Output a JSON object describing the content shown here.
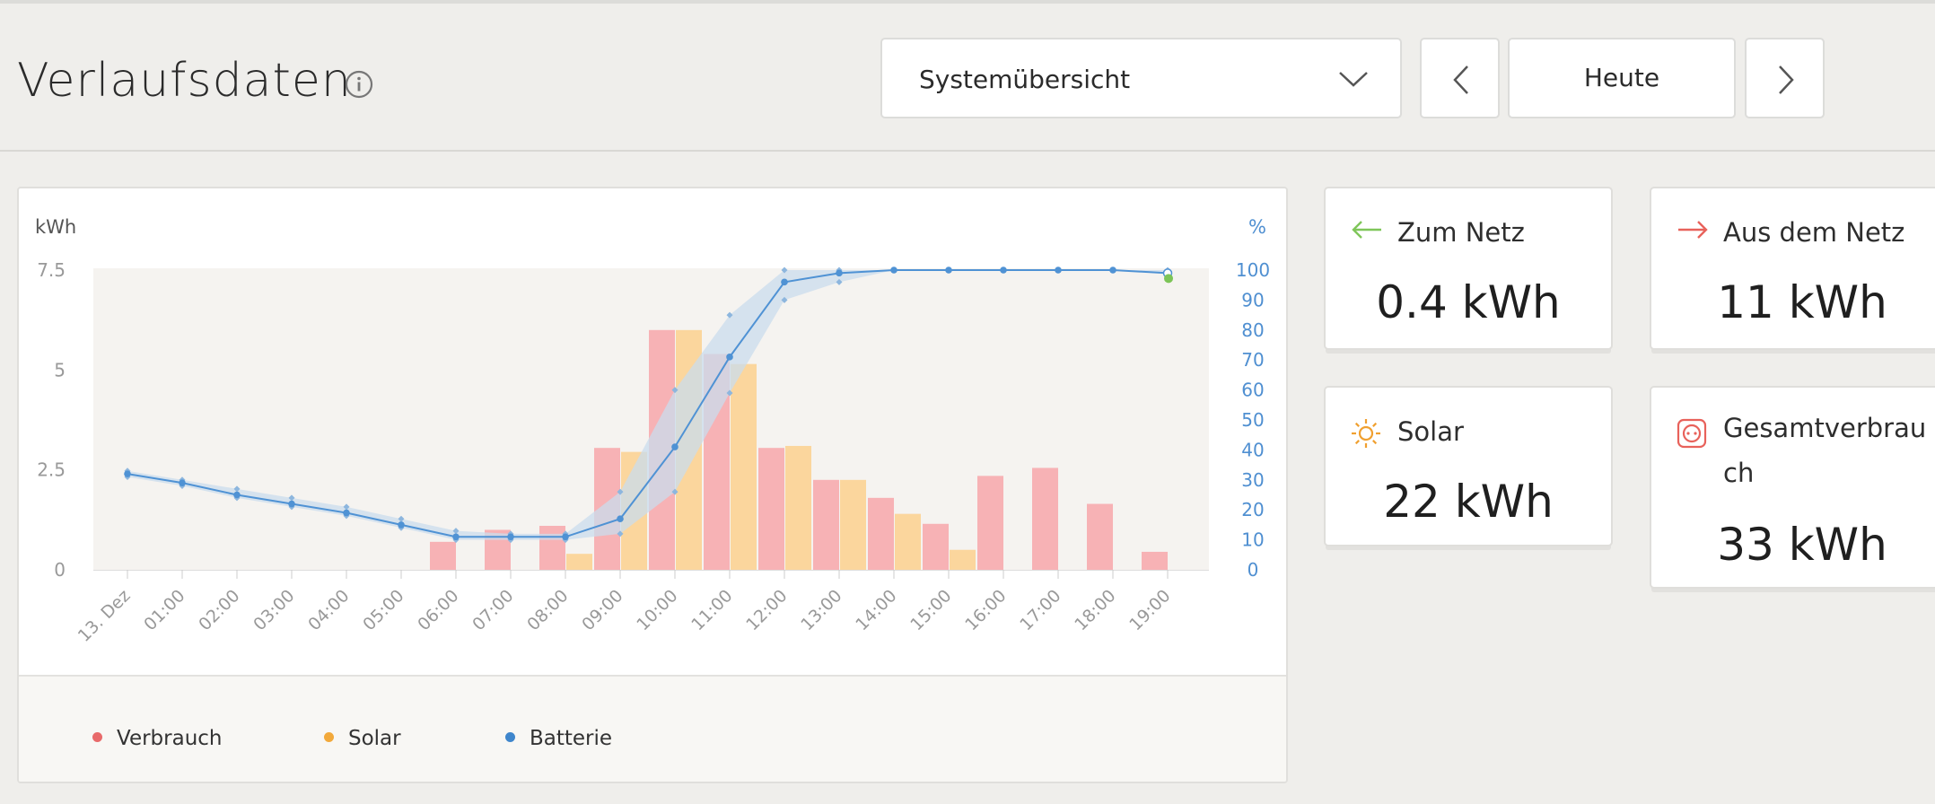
{
  "header": {
    "title": "Verlaufsdaten",
    "view_select": "Systemübersicht",
    "date_button": "Heute"
  },
  "stats": [
    {
      "label": "Zum Netz",
      "value": "0.4 kWh",
      "icon": "arrow-left-icon",
      "color": "#7fc65a"
    },
    {
      "label": "Aus dem Netz",
      "value": "11 kWh",
      "icon": "arrow-right-icon",
      "color": "#e8625b"
    },
    {
      "label": "Solar",
      "value": "22 kWh",
      "icon": "sun-icon",
      "color": "#f0a030"
    },
    {
      "label": "Gesamtverbrauch",
      "value": "33 kWh",
      "icon": "socket-icon",
      "color": "#e8625b"
    }
  ],
  "colors": {
    "verbrauch": "#f7b2b5",
    "solar": "#fbd69d",
    "batterie": "#4f92d4",
    "band": "#c9dcee",
    "plot_bg": "#f5f3f0"
  },
  "chart_data": {
    "type": "bar",
    "ylabel_left": "kWh",
    "ylabel_right": "%",
    "ylim_left": [
      0,
      7.5
    ],
    "ylim_right": [
      0,
      100
    ],
    "left_ticks": [
      "0",
      "2.5",
      "5",
      "7.5"
    ],
    "right_ticks": [
      "0",
      "10",
      "20",
      "30",
      "40",
      "50",
      "60",
      "70",
      "80",
      "90",
      "100"
    ],
    "categories": [
      "13. Dez",
      "01:00",
      "02:00",
      "03:00",
      "04:00",
      "05:00",
      "06:00",
      "07:00",
      "08:00",
      "09:00",
      "10:00",
      "11:00",
      "12:00",
      "13:00",
      "14:00",
      "15:00",
      "16:00",
      "17:00",
      "18:00",
      "19:00"
    ],
    "series": [
      {
        "name": "Verbrauch",
        "axis": "left",
        "type": "bar",
        "values": [
          0,
          0,
          0,
          0,
          0,
          0,
          0.7,
          1.0,
          1.1,
          3.05,
          6.0,
          5.4,
          3.05,
          2.25,
          1.8,
          1.15,
          2.35,
          2.55,
          1.65,
          0.45
        ]
      },
      {
        "name": "Solar",
        "axis": "left",
        "type": "bar",
        "values": [
          0,
          0,
          0,
          0,
          0,
          0,
          0,
          0,
          0.4,
          2.95,
          6.0,
          5.15,
          3.1,
          2.25,
          1.4,
          0.5,
          0,
          0,
          0,
          0
        ]
      },
      {
        "name": "Batterie",
        "axis": "right",
        "type": "line",
        "values": [
          32,
          29,
          25,
          22,
          19,
          15,
          11,
          11,
          11,
          17,
          41,
          71,
          96,
          99,
          100,
          100,
          100,
          100,
          100,
          99
        ]
      }
    ],
    "battery_band": {
      "min": [
        31,
        28,
        24,
        21,
        18,
        14,
        10,
        10,
        10,
        12,
        26,
        59,
        90,
        96,
        100,
        100,
        100,
        100,
        100,
        99
      ],
      "max": [
        33,
        30,
        27,
        24,
        21,
        17,
        13,
        12,
        12,
        26,
        60,
        85,
        100,
        100,
        100,
        100,
        100,
        100,
        100,
        100
      ]
    },
    "legend": [
      "Verbrauch",
      "Solar",
      "Batterie"
    ],
    "legend_position": "bottom",
    "grid": false
  }
}
